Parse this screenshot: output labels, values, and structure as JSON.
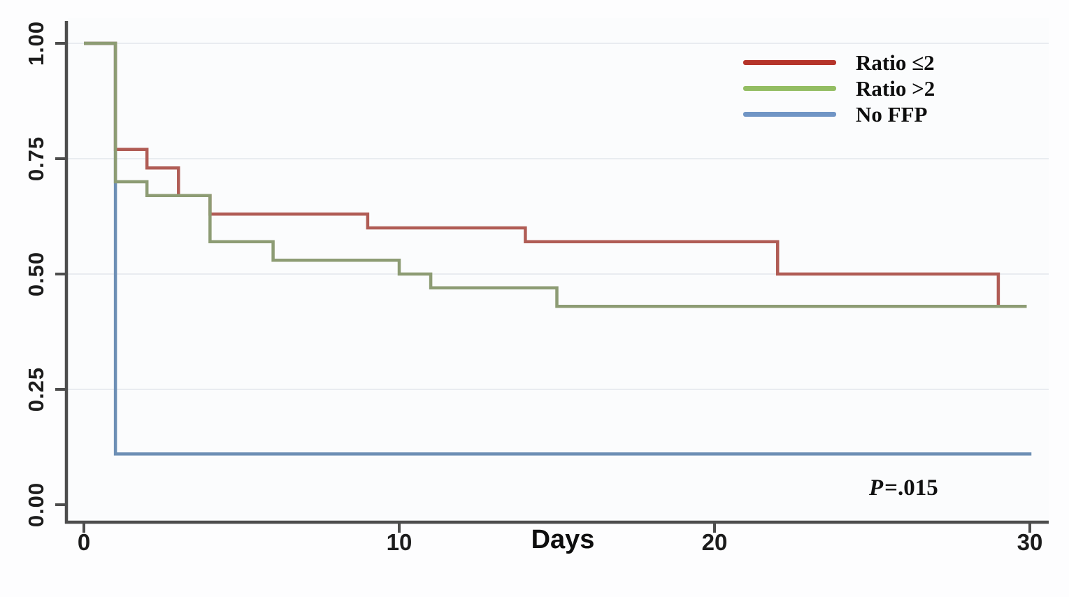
{
  "chart_data": {
    "type": "line",
    "subtype": "kaplan-meier-step",
    "title": "",
    "xlabel": "Days",
    "ylabel": "",
    "xlim": [
      0,
      30
    ],
    "ylim": [
      0.0,
      1.0
    ],
    "xticks": [
      0,
      10,
      20,
      30
    ],
    "yticks": [
      "0.00",
      "0.25",
      "0.50",
      "0.75",
      "1.00"
    ],
    "grid": "faint horizontal gridlines at y ticks",
    "legend_position": "top-right",
    "axis_color": "#4d4d4d",
    "gridline_color": "#e9ecf0",
    "series": [
      {
        "name": "Ratio ≤2",
        "curve_color": "#b05c55",
        "legend_color": "#b5342a",
        "steps": [
          [
            0,
            1.0
          ],
          [
            1,
            0.77
          ],
          [
            2,
            0.73
          ],
          [
            3,
            0.67
          ],
          [
            4,
            0.63
          ],
          [
            9,
            0.6
          ],
          [
            14,
            0.57
          ],
          [
            22,
            0.5
          ],
          [
            29,
            0.43
          ]
        ],
        "end_day": 29.9
      },
      {
        "name": "Ratio >2",
        "curve_color": "#8d9c74",
        "legend_color": "#93bd63",
        "steps": [
          [
            0,
            1.0
          ],
          [
            1,
            0.7
          ],
          [
            2,
            0.67
          ],
          [
            4,
            0.57
          ],
          [
            6,
            0.53
          ],
          [
            10,
            0.5
          ],
          [
            11,
            0.47
          ],
          [
            15,
            0.43
          ]
        ],
        "end_day": 29.9
      },
      {
        "name": "No FFP",
        "curve_color": "#6d8fb5",
        "legend_color": "#7095c5",
        "steps": [
          [
            0,
            1.0
          ],
          [
            1,
            0.11
          ]
        ],
        "end_day": 30.05
      }
    ],
    "annotation": {
      "text": "P=.015",
      "variable": "P",
      "rest": "=.015"
    }
  }
}
